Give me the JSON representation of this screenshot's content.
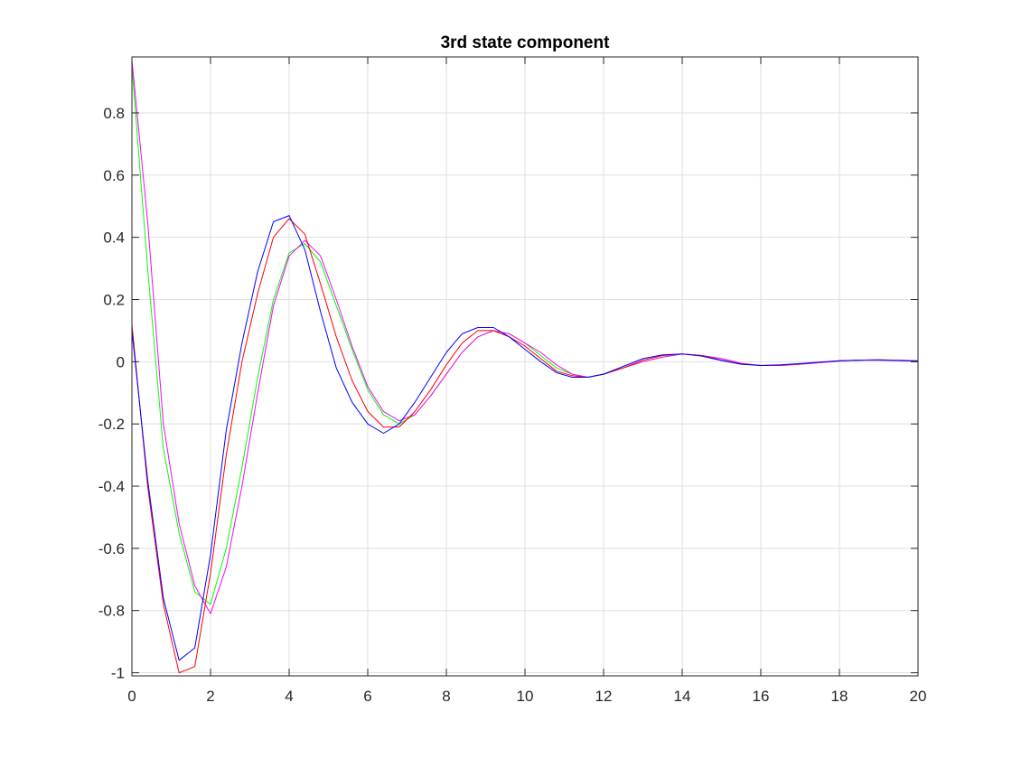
{
  "chart_data": {
    "type": "line",
    "title": "3rd state component",
    "xlabel": "",
    "ylabel": "",
    "xlim": [
      0,
      20
    ],
    "ylim": [
      -1.01,
      0.98
    ],
    "grid": true,
    "x_ticks": [
      "0",
      "2",
      "4",
      "6",
      "8",
      "10",
      "12",
      "14",
      "16",
      "18",
      "20"
    ],
    "y_ticks": [
      "-1",
      "-0.8",
      "-0.6",
      "-0.4",
      "-0.2",
      "0",
      "0.2",
      "0.4",
      "0.6",
      "0.8"
    ],
    "x_tick_values": [
      0,
      2,
      4,
      6,
      8,
      10,
      12,
      14,
      16,
      18,
      20
    ],
    "y_tick_values": [
      -1,
      -0.8,
      -0.6,
      -0.4,
      -0.2,
      0,
      0.2,
      0.4,
      0.6,
      0.8
    ],
    "series": [
      {
        "color": "#00ff00",
        "x": [
          0,
          0.4,
          0.8,
          1.2,
          1.6,
          2.0,
          2.4,
          2.8,
          3.2,
          3.6,
          4.0,
          4.4,
          4.8,
          5.2,
          5.6,
          6.0,
          6.4,
          6.8,
          7.2,
          7.6,
          8.0,
          8.4,
          8.8,
          9.2,
          9.6,
          10.0,
          10.4,
          10.8,
          11.2,
          11.6,
          12.0,
          12.5,
          13.0,
          13.5,
          14.0,
          14.5,
          15.0,
          15.5,
          16.0,
          16.5,
          17.0,
          17.5,
          18.0,
          18.5,
          19.0,
          19.5,
          20.0
        ],
        "y": [
          0.95,
          0.3,
          -0.28,
          -0.55,
          -0.74,
          -0.78,
          -0.6,
          -0.34,
          -0.05,
          0.2,
          0.35,
          0.38,
          0.32,
          0.18,
          0.04,
          -0.09,
          -0.17,
          -0.2,
          -0.17,
          -0.11,
          -0.04,
          0.03,
          0.08,
          0.1,
          0.09,
          0.06,
          0.02,
          -0.02,
          -0.04,
          -0.05,
          -0.04,
          -0.02,
          0.0,
          0.015,
          0.025,
          0.02,
          0.01,
          -0.005,
          -0.012,
          -0.012,
          -0.008,
          -0.003,
          0.002,
          0.005,
          0.006,
          0.005,
          0.003
        ]
      },
      {
        "color": "#ff00ff",
        "x": [
          0,
          0.4,
          0.8,
          1.2,
          1.6,
          2.0,
          2.4,
          2.8,
          3.2,
          3.6,
          4.0,
          4.4,
          4.8,
          5.2,
          5.6,
          6.0,
          6.4,
          6.8,
          7.2,
          7.6,
          8.0,
          8.4,
          8.8,
          9.2,
          9.6,
          10.0,
          10.4,
          10.8,
          11.2,
          11.6,
          12.0,
          12.5,
          13.0,
          13.5,
          14.0,
          14.5,
          15.0,
          15.5,
          16.0,
          16.5,
          17.0,
          17.5,
          18.0,
          18.5,
          19.0,
          19.5,
          20.0
        ],
        "y": [
          0.97,
          0.45,
          -0.2,
          -0.52,
          -0.72,
          -0.81,
          -0.66,
          -0.4,
          -0.1,
          0.18,
          0.34,
          0.39,
          0.34,
          0.2,
          0.05,
          -0.08,
          -0.16,
          -0.19,
          -0.17,
          -0.11,
          -0.04,
          0.03,
          0.08,
          0.1,
          0.09,
          0.06,
          0.03,
          -0.01,
          -0.04,
          -0.05,
          -0.04,
          -0.02,
          0.0,
          0.015,
          0.025,
          0.02,
          0.01,
          -0.005,
          -0.012,
          -0.012,
          -0.008,
          -0.003,
          0.002,
          0.005,
          0.006,
          0.005,
          0.003
        ]
      },
      {
        "color": "#ff0000",
        "x": [
          0,
          0.4,
          0.8,
          1.2,
          1.6,
          2.0,
          2.4,
          2.8,
          3.2,
          3.6,
          4.0,
          4.4,
          4.8,
          5.2,
          5.6,
          6.0,
          6.4,
          6.8,
          7.2,
          7.6,
          8.0,
          8.4,
          8.8,
          9.2,
          9.6,
          10.0,
          10.4,
          10.8,
          11.2,
          11.6,
          12.0,
          12.5,
          13.0,
          13.5,
          14.0,
          14.5,
          15.0,
          15.5,
          16.0,
          16.5,
          17.0,
          17.5,
          18.0,
          18.5,
          19.0,
          19.5,
          20.0
        ],
        "y": [
          0.12,
          -0.4,
          -0.78,
          -1.0,
          -0.98,
          -0.68,
          -0.3,
          0.0,
          0.22,
          0.4,
          0.46,
          0.41,
          0.25,
          0.08,
          -0.06,
          -0.16,
          -0.21,
          -0.21,
          -0.16,
          -0.09,
          -0.01,
          0.06,
          0.1,
          0.1,
          0.08,
          0.05,
          0.01,
          -0.03,
          -0.045,
          -0.05,
          -0.04,
          -0.02,
          0.005,
          0.02,
          0.025,
          0.02,
          0.005,
          -0.007,
          -0.012,
          -0.011,
          -0.007,
          -0.002,
          0.003,
          0.005,
          0.006,
          0.004,
          0.002
        ]
      },
      {
        "color": "#0000ff",
        "x": [
          0,
          0.4,
          0.8,
          1.2,
          1.6,
          2.0,
          2.4,
          2.8,
          3.2,
          3.6,
          4.0,
          4.4,
          4.8,
          5.2,
          5.6,
          6.0,
          6.4,
          6.8,
          7.2,
          7.6,
          8.0,
          8.4,
          8.8,
          9.2,
          9.6,
          10.0,
          10.4,
          10.8,
          11.2,
          11.6,
          12.0,
          12.5,
          13.0,
          13.5,
          14.0,
          14.5,
          15.0,
          15.5,
          16.0,
          16.5,
          17.0,
          17.5,
          18.0,
          18.5,
          19.0,
          19.5,
          20.0
        ],
        "y": [
          0.1,
          -0.38,
          -0.76,
          -0.96,
          -0.92,
          -0.62,
          -0.22,
          0.06,
          0.29,
          0.45,
          0.47,
          0.36,
          0.16,
          -0.02,
          -0.13,
          -0.2,
          -0.23,
          -0.2,
          -0.13,
          -0.05,
          0.03,
          0.09,
          0.11,
          0.11,
          0.08,
          0.04,
          0.0,
          -0.035,
          -0.05,
          -0.05,
          -0.04,
          -0.015,
          0.01,
          0.022,
          0.025,
          0.018,
          0.004,
          -0.008,
          -0.012,
          -0.01,
          -0.006,
          -0.001,
          0.003,
          0.005,
          0.005,
          0.004,
          0.002
        ]
      }
    ]
  }
}
